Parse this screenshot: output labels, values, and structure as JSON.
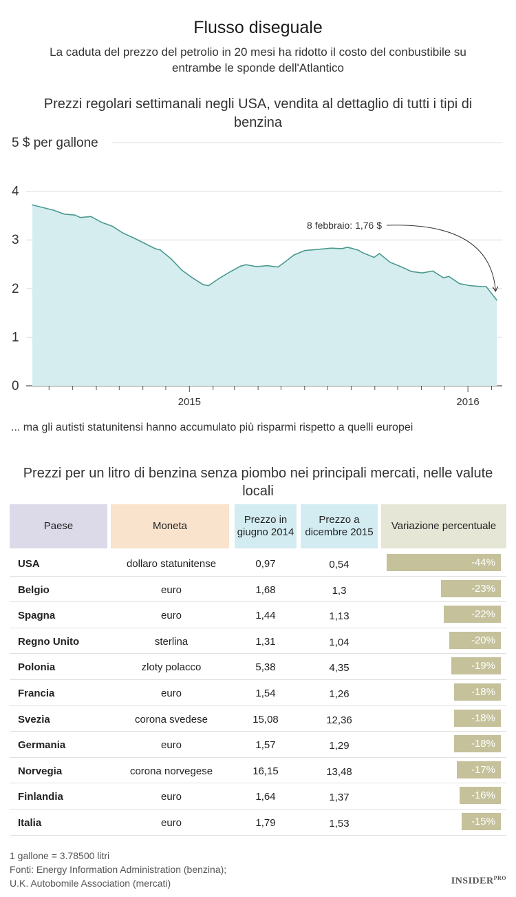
{
  "header": {
    "title": "Flusso diseguale",
    "subtitle": "La caduta del prezzo del petrolio in 20 mesi ha ridotto il costo del conbustibile su entrambe le sponde dell'Atlantico"
  },
  "chart_data": {
    "type": "area",
    "title": "Prezzi regolari settimanali negli USA, vendita al dettaglio di tutti i tipi di benzina",
    "ylabel": "5 $ per gallone",
    "ylim": [
      0,
      5
    ],
    "yticks": [
      "0",
      "1",
      "2",
      "3",
      "4"
    ],
    "xlim": [
      "2014-06-01",
      "2016-02-15"
    ],
    "xticks": [
      {
        "date": "2015-01-01",
        "label": "2015"
      },
      {
        "date": "2016-01-01",
        "label": "2016"
      }
    ],
    "fill_color": "#d6edf0",
    "line_color": "#4a9a8f",
    "annotation": {
      "text": "8 febbraio: 1,76 $",
      "date": "2016-02-08",
      "value": 1.76
    },
    "series": [
      {
        "x": [
          "2014-06-09",
          "2014-07-07",
          "2014-07-21",
          "2014-08-04",
          "2014-08-11",
          "2014-08-25",
          "2014-09-08",
          "2014-09-22",
          "2014-10-06",
          "2014-10-20",
          "2014-11-03",
          "2014-11-17",
          "2014-11-24",
          "2014-12-08",
          "2014-12-22",
          "2015-01-05",
          "2015-01-19",
          "2015-01-26",
          "2015-02-09",
          "2015-02-23",
          "2015-03-09",
          "2015-03-16",
          "2015-03-30",
          "2015-04-13",
          "2015-04-27",
          "2015-05-04",
          "2015-05-18",
          "2015-06-01",
          "2015-06-15",
          "2015-07-06",
          "2015-07-20",
          "2015-07-27",
          "2015-08-10",
          "2015-08-17",
          "2015-08-31",
          "2015-09-07",
          "2015-09-21",
          "2015-10-05",
          "2015-10-19",
          "2015-11-02",
          "2015-11-16",
          "2015-11-30",
          "2015-12-07",
          "2015-12-21",
          "2016-01-04",
          "2016-01-18",
          "2016-01-25",
          "2016-02-08"
        ],
        "y": [
          3.72,
          3.61,
          3.53,
          3.51,
          3.46,
          3.48,
          3.36,
          3.28,
          3.14,
          3.04,
          2.93,
          2.82,
          2.79,
          2.61,
          2.38,
          2.22,
          2.08,
          2.06,
          2.21,
          2.34,
          2.46,
          2.49,
          2.45,
          2.47,
          2.44,
          2.52,
          2.69,
          2.78,
          2.8,
          2.83,
          2.82,
          2.85,
          2.79,
          2.73,
          2.64,
          2.72,
          2.54,
          2.45,
          2.35,
          2.32,
          2.36,
          2.22,
          2.25,
          2.1,
          2.06,
          2.04,
          2.04,
          1.76
        ]
      }
    ]
  },
  "midtext": "... ma gli autisti statunitensi hanno accumulato più risparmi rispetto a quelli europei",
  "table": {
    "title": "Prezzi per un litro di benzina senza piombo nei principali mercati, nelle valute locali",
    "headers": {
      "paese": "Paese",
      "moneta": "Moneta",
      "giugno": "Prezzo in giugno 2014",
      "dicembre": "Prezzo a dicembre 2015",
      "variazione": "Variazione percentuale"
    },
    "bar_color": "#c4c19b",
    "rows": [
      {
        "paese": "USA",
        "moneta": "dollaro statunitense",
        "giugno": "0,97",
        "dicembre": "0,54",
        "variazione": "-44%",
        "pct": 44
      },
      {
        "paese": "Belgio",
        "moneta": "euro",
        "giugno": "1,68",
        "dicembre": "1,3",
        "variazione": "-23%",
        "pct": 23
      },
      {
        "paese": "Spagna",
        "moneta": "euro",
        "giugno": "1,44",
        "dicembre": "1,13",
        "variazione": "-22%",
        "pct": 22
      },
      {
        "paese": "Regno Unito",
        "moneta": "sterlina",
        "giugno": "1,31",
        "dicembre": "1,04",
        "variazione": "-20%",
        "pct": 20
      },
      {
        "paese": "Polonia",
        "moneta": "zloty polacco",
        "giugno": "5,38",
        "dicembre": "4,35",
        "variazione": "-19%",
        "pct": 19
      },
      {
        "paese": "Francia",
        "moneta": "euro",
        "giugno": "1,54",
        "dicembre": "1,26",
        "variazione": "-18%",
        "pct": 18
      },
      {
        "paese": "Svezia",
        "moneta": "corona svedese",
        "giugno": "15,08",
        "dicembre": "12,36",
        "variazione": "-18%",
        "pct": 18
      },
      {
        "paese": "Germania",
        "moneta": "euro",
        "giugno": "1,57",
        "dicembre": "1,29",
        "variazione": "-18%",
        "pct": 18
      },
      {
        "paese": "Norvegia",
        "moneta": "corona norvegese",
        "giugno": "16,15",
        "dicembre": "13,48",
        "variazione": "-17%",
        "pct": 17
      },
      {
        "paese": "Finlandia",
        "moneta": "euro",
        "giugno": "1,64",
        "dicembre": "1,37",
        "variazione": "-16%",
        "pct": 16
      },
      {
        "paese": "Italia",
        "moneta": "euro",
        "giugno": "1,79",
        "dicembre": "1,53",
        "variazione": "-15%",
        "pct": 15
      }
    ]
  },
  "footnote": {
    "line1": "1 gallone = 3.78500 litri",
    "line2": "Fonti: Energy Information Administration (benzina);",
    "line3": "U.K. Autobomile Association (mercati)"
  },
  "logo": {
    "text": "INSIDER",
    "sup": "PRO"
  }
}
